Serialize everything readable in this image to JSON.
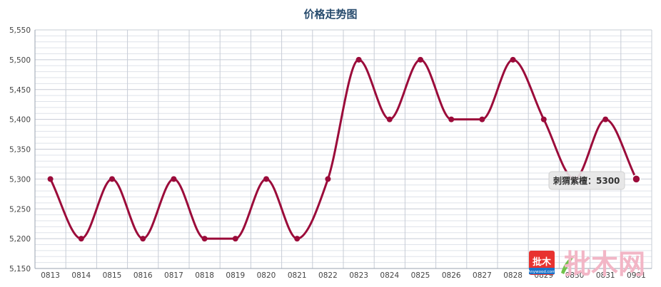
{
  "chart_data": {
    "type": "line",
    "title": "价格走势图",
    "categories": [
      "0813",
      "0814",
      "0815",
      "0816",
      "0817",
      "0818",
      "0819",
      "0820",
      "0821",
      "0822",
      "0823",
      "0824",
      "0825",
      "0826",
      "0827",
      "0828",
      "0829",
      "0830",
      "0831",
      "0901"
    ],
    "series": [
      {
        "name": "刺猬紫檀",
        "color": "#9b0b3a",
        "values": [
          5300,
          5200,
          5300,
          5200,
          5300,
          5200,
          5200,
          5300,
          5200,
          5300,
          5500,
          5400,
          5500,
          5400,
          5400,
          5500,
          5400,
          5300,
          5400,
          5300
        ]
      }
    ],
    "yticks": [
      "5,150",
      "5,200",
      "5,250",
      "5,300",
      "5,350",
      "5,400",
      "5,450",
      "5,500",
      "5,550"
    ],
    "ylim": [
      5150,
      5550
    ],
    "grid": true,
    "xlabel": "",
    "ylabel": ""
  },
  "tooltip": {
    "series_label": "刺猬紫檀",
    "separator": "：",
    "value": "5300"
  },
  "watermark": {
    "badge_text": "批木",
    "badge_subtext": "Anywood.com",
    "big_text": "批木网",
    "badge_color": "#e8322f",
    "accent_color": "#f2b6c6"
  }
}
